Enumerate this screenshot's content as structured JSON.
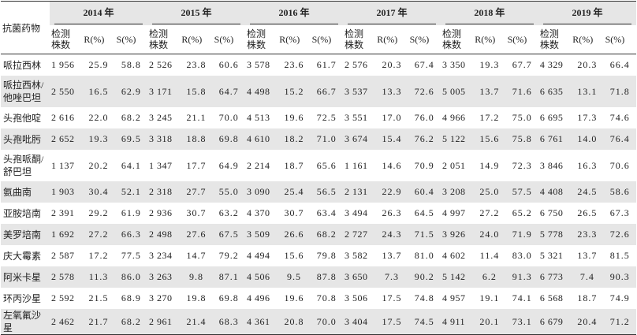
{
  "table": {
    "corner": "抗菌药物",
    "years": [
      "2014 年",
      "2015 年",
      "2016 年",
      "2017 年",
      "2018 年",
      "2019 年"
    ],
    "subheaders": [
      "检测株数",
      "R(%)",
      "S(%)"
    ],
    "rows": [
      {
        "drug": "哌拉西林",
        "values": [
          [
            "1 956",
            "25.9",
            "58.8"
          ],
          [
            "2 526",
            "23.8",
            "60.6"
          ],
          [
            "3 578",
            "23.6",
            "61.7"
          ],
          [
            "2 576",
            "20.3",
            "67.4"
          ],
          [
            "3 350",
            "19.3",
            "67.7"
          ],
          [
            "4 329",
            "20.3",
            "66.4"
          ]
        ]
      },
      {
        "drug": "哌拉西林/他唑巴坦",
        "values": [
          [
            "2 550",
            "16.5",
            "62.9"
          ],
          [
            "3 171",
            "15.8",
            "64.7"
          ],
          [
            "4 498",
            "15.2",
            "66.7"
          ],
          [
            "3 537",
            "13.3",
            "72.6"
          ],
          [
            "5 005",
            "13.7",
            "71.6"
          ],
          [
            "6 635",
            "13.1",
            "71.8"
          ]
        ]
      },
      {
        "drug": "头孢他啶",
        "values": [
          [
            "2 616",
            "22.0",
            "68.2"
          ],
          [
            "3 245",
            "21.1",
            "70.0"
          ],
          [
            "4 513",
            "19.6",
            "72.5"
          ],
          [
            "3 551",
            "17.0",
            "76.0"
          ],
          [
            "4 966",
            "17.2",
            "75.0"
          ],
          [
            "6 695",
            "17.3",
            "74.6"
          ]
        ]
      },
      {
        "drug": "头孢吡肟",
        "values": [
          [
            "2 652",
            "19.3",
            "69.5"
          ],
          [
            "3 318",
            "18.8",
            "69.8"
          ],
          [
            "4 610",
            "18.2",
            "71.0"
          ],
          [
            "3 674",
            "15.4",
            "76.2"
          ],
          [
            "5 122",
            "15.6",
            "75.8"
          ],
          [
            "6 761",
            "14.0",
            "76.4"
          ]
        ]
      },
      {
        "drug": "头孢哌酮/舒巴坦",
        "values": [
          [
            "1 137",
            "20.2",
            "64.1"
          ],
          [
            "1 347",
            "17.7",
            "64.9"
          ],
          [
            "2 214",
            "18.7",
            "65.6"
          ],
          [
            "1 161",
            "14.6",
            "70.9"
          ],
          [
            "2 051",
            "14.9",
            "72.3"
          ],
          [
            "3 846",
            "16.3",
            "70.6"
          ]
        ]
      },
      {
        "drug": "氨曲南",
        "values": [
          [
            "1 903",
            "30.4",
            "52.1"
          ],
          [
            "2 318",
            "27.7",
            "55.0"
          ],
          [
            "3 090",
            "25.4",
            "56.5"
          ],
          [
            "2 131",
            "22.9",
            "60.4"
          ],
          [
            "3 208",
            "25.0",
            "57.5"
          ],
          [
            "4 408",
            "24.5",
            "58.6"
          ]
        ]
      },
      {
        "drug": "亚胺培南",
        "values": [
          [
            "2 391",
            "29.2",
            "61.9"
          ],
          [
            "2 936",
            "30.7",
            "63.2"
          ],
          [
            "4 370",
            "30.7",
            "63.4"
          ],
          [
            "3 494",
            "26.3",
            "64.5"
          ],
          [
            "4 997",
            "27.2",
            "65.2"
          ],
          [
            "6 750",
            "26.5",
            "67.3"
          ]
        ]
      },
      {
        "drug": "美罗培南",
        "values": [
          [
            "1 692",
            "27.2",
            "66.3"
          ],
          [
            "2 498",
            "27.6",
            "67.5"
          ],
          [
            "3 509",
            "26.6",
            "68.2"
          ],
          [
            "2 727",
            "24.3",
            "71.5"
          ],
          [
            "3 926",
            "24.0",
            "71.9"
          ],
          [
            "5 778",
            "23.3",
            "72.6"
          ]
        ]
      },
      {
        "drug": "庆大霉素",
        "values": [
          [
            "2 587",
            "17.2",
            "77.5"
          ],
          [
            "3 234",
            "14.7",
            "79.2"
          ],
          [
            "4 494",
            "15.6",
            "79.8"
          ],
          [
            "3 582",
            "13.7",
            "81.0"
          ],
          [
            "4 602",
            "11.4",
            "83.0"
          ],
          [
            "5 321",
            "13.7",
            "81.5"
          ]
        ]
      },
      {
        "drug": "阿米卡星",
        "values": [
          [
            "2 578",
            "11.3",
            "86.0"
          ],
          [
            "3 263",
            "9.8",
            "87.1"
          ],
          [
            "4 506",
            "9.5",
            "87.8"
          ],
          [
            "3 650",
            "7.3",
            "90.2"
          ],
          [
            "5 142",
            "6.2",
            "91.3"
          ],
          [
            "6 773",
            "7.4",
            "90.3"
          ]
        ]
      },
      {
        "drug": "环丙沙星",
        "values": [
          [
            "2 592",
            "21.5",
            "68.9"
          ],
          [
            "3 270",
            "19.8",
            "69.8"
          ],
          [
            "4 496",
            "19.6",
            "70.8"
          ],
          [
            "3 506",
            "17.5",
            "74.8"
          ],
          [
            "4 957",
            "19.1",
            "74.1"
          ],
          [
            "6 568",
            "18.7",
            "74.9"
          ]
        ]
      },
      {
        "drug": "左氧氟沙星",
        "values": [
          [
            "2 462",
            "21.7",
            "68.2"
          ],
          [
            "2 961",
            "21.4",
            "68.3"
          ],
          [
            "4 361",
            "20.8",
            "70.0"
          ],
          [
            "3 404",
            "17.5",
            "74.5"
          ],
          [
            "4 911",
            "20.1",
            "73.1"
          ],
          [
            "6 679",
            "20.4",
            "71.2"
          ]
        ]
      }
    ]
  }
}
